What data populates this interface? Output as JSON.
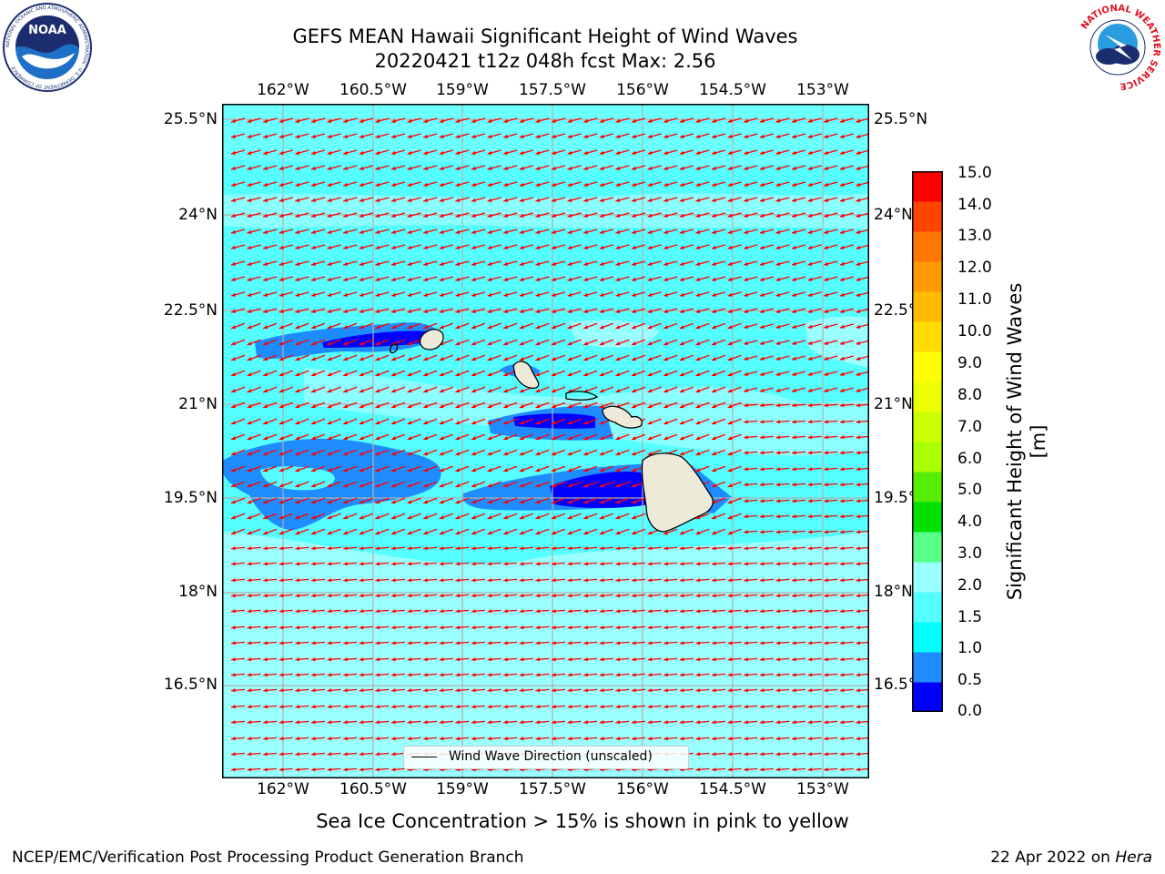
{
  "title": {
    "line1": "GEFS MEAN Hawaii Significant Height of Wind Waves",
    "line2": "20220421 t12z 048h fcst   Max: 2.56"
  },
  "logos": {
    "noaa": {
      "text": "NOAA",
      "icon": "noaa-logo-icon",
      "ring_text": "NATIONAL OCEANIC AND ATMOSPHERIC ADMINISTRATION · U.S. DEPARTMENT OF COMMERCE"
    },
    "nws": {
      "icon": "nws-logo-icon",
      "ring_text": "NATIONAL WEATHER SERVICE"
    }
  },
  "map": {
    "lon_ticks": [
      "162°W",
      "160.5°W",
      "159°W",
      "157.5°W",
      "156°W",
      "154.5°W",
      "153°W"
    ],
    "lat_ticks": [
      "25.5°N",
      "24°N",
      "22.5°N",
      "21°N",
      "19.5°N",
      "18°N",
      "16.5°N"
    ],
    "legend": "Wind Wave Direction (unscaled)",
    "colors": {
      "land": "#eeead9",
      "arrow": "#ff0000",
      "grid": "#b0b0b0"
    }
  },
  "colorbar": {
    "label": "Significant Height of Wind Waves [m]",
    "ticks": [
      "15.0",
      "14.0",
      "13.0",
      "12.0",
      "11.0",
      "10.0",
      "9.0",
      "8.0",
      "7.0",
      "6.0",
      "5.0",
      "4.0",
      "3.0",
      "2.0",
      "1.5",
      "1.0",
      "0.5",
      "0.0"
    ],
    "colors": [
      "#0000ff",
      "#1e8cff",
      "#00ffff",
      "#55ffff",
      "#99ffff",
      "#55ff88",
      "#00e000",
      "#55ee00",
      "#aaff00",
      "#ccff00",
      "#eeff00",
      "#ffff00",
      "#ffdd00",
      "#ffbb00",
      "#ff9900",
      "#ff7700",
      "#ff4400",
      "#ff0000"
    ]
  },
  "notes": {
    "sea_ice": "Sea Ice Concentration > 15% is shown in pink to yellow",
    "footer_left": "NCEP/EMC/Verification Post Processing Product Generation Branch",
    "footer_date": "22 Apr 2022 on",
    "footer_machine": "Hera"
  }
}
